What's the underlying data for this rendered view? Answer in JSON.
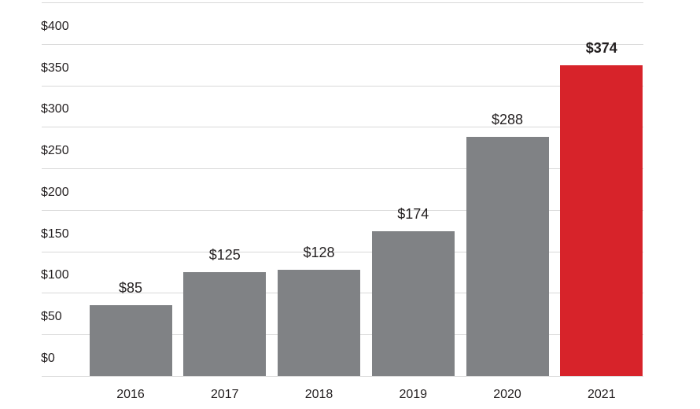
{
  "chart_data": {
    "type": "bar",
    "title": "",
    "xlabel": "",
    "ylabel": "",
    "categories": [
      "2016",
      "2017",
      "2018",
      "2019",
      "2020",
      "2021"
    ],
    "values": [
      85,
      125,
      128,
      174,
      288,
      374
    ],
    "value_labels": [
      "$85",
      "$125",
      "$128",
      "$174",
      "$288",
      "$374"
    ],
    "highlight_index": 5,
    "ylim": [
      0,
      450
    ],
    "yticks": [
      {
        "value": 0,
        "label": "$0"
      },
      {
        "value": 50,
        "label": "$50"
      },
      {
        "value": 100,
        "label": "$100"
      },
      {
        "value": 150,
        "label": "$150"
      },
      {
        "value": 200,
        "label": "$200"
      },
      {
        "value": 250,
        "label": "$250"
      },
      {
        "value": 300,
        "label": "$300"
      },
      {
        "value": 350,
        "label": "$350"
      },
      {
        "value": 400,
        "label": "$400"
      },
      {
        "value": 450,
        "label": ""
      }
    ],
    "grid": true,
    "legend": "none",
    "colors": {
      "bar": "#808285",
      "highlight_bar": "#d7232a",
      "text": "#231f20",
      "gridline": "#d9d9d9",
      "background": "#ffffff"
    }
  }
}
